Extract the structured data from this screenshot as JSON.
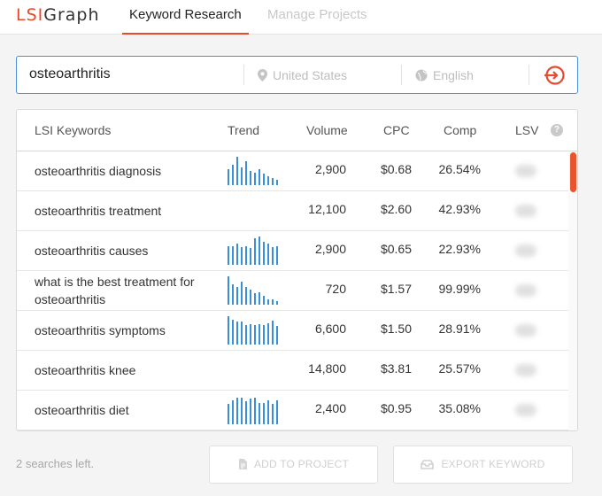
{
  "header": {
    "logo_lsi": "LSI",
    "logo_graph": "Graph",
    "tabs": [
      {
        "label": "Keyword Research",
        "active": true
      },
      {
        "label": "Manage Projects",
        "active": false
      }
    ]
  },
  "search": {
    "query": "osteoarthritis",
    "location": "United States",
    "language": "English",
    "go_icon": "enter-arrow-icon"
  },
  "table": {
    "headers": {
      "keyword": "LSI Keywords",
      "trend": "Trend",
      "volume": "Volume",
      "cpc": "CPC",
      "comp": "Comp",
      "lsv": "LSV"
    },
    "rows": [
      {
        "keyword": "osteoarthritis diagnosis",
        "volume": "2,900",
        "cpc": "$0.68",
        "comp": "26.54%",
        "trend": [
          0.55,
          0.72,
          1.0,
          0.62,
          0.85,
          0.5,
          0.45,
          0.55,
          0.4,
          0.32,
          0.25,
          0.2
        ]
      },
      {
        "keyword": "osteoarthritis treatment",
        "volume": "12,100",
        "cpc": "$2.60",
        "comp": "42.93%",
        "trend": []
      },
      {
        "keyword": "osteoarthritis causes",
        "volume": "2,900",
        "cpc": "$0.65",
        "comp": "22.93%",
        "trend": [
          0.65,
          0.65,
          0.75,
          0.62,
          0.65,
          0.6,
          0.95,
          1.0,
          0.8,
          0.75,
          0.62,
          0.65
        ]
      },
      {
        "keyword": "what is the best treatment for osteoarthritis",
        "volume": "720",
        "cpc": "$1.57",
        "comp": "99.99%",
        "trend": [
          1.0,
          0.72,
          0.62,
          0.8,
          0.62,
          0.52,
          0.42,
          0.45,
          0.32,
          0.2,
          0.18,
          0.12
        ]
      },
      {
        "keyword": "osteoarthritis symptoms",
        "volume": "6,600",
        "cpc": "$1.50",
        "comp": "28.91%",
        "trend": [
          1.0,
          0.88,
          0.8,
          0.8,
          0.7,
          0.72,
          0.68,
          0.72,
          0.68,
          0.75,
          0.85,
          0.65
        ]
      },
      {
        "keyword": "osteoarthritis knee",
        "volume": "14,800",
        "cpc": "$3.81",
        "comp": "25.57%",
        "trend": []
      },
      {
        "keyword": "osteoarthritis diet",
        "volume": "2,400",
        "cpc": "$0.95",
        "comp": "35.08%",
        "trend": [
          0.72,
          0.85,
          0.95,
          0.95,
          0.8,
          0.9,
          0.95,
          0.75,
          0.75,
          0.85,
          0.72,
          0.85
        ]
      }
    ]
  },
  "footer": {
    "searches_left": "2 searches left.",
    "add_to_project": "ADD TO PROJECT",
    "export_keyword": "EXPORT KEYWORD"
  },
  "colors": {
    "accent": "#e8482b",
    "trend_bar": "#3b8ed8",
    "search_border": "#4a90d9"
  }
}
